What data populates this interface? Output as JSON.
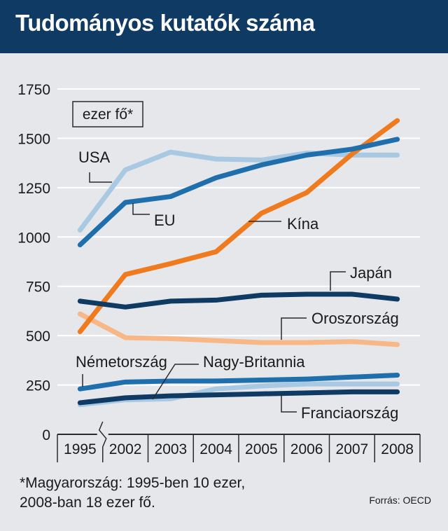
{
  "header": {
    "title": "Tudományos kutatók száma"
  },
  "footnote": {
    "line1": "*Magyarország: 1995-ben 10 ezer,",
    "line2": "2008-ban 18 ezer fő."
  },
  "source": "Forrás: OECD",
  "chart_data": {
    "type": "line",
    "unit_label": "ezer fő*",
    "categories": [
      "1995",
      "2002",
      "2003",
      "2004",
      "2005",
      "2006",
      "2007",
      "2008"
    ],
    "yticks": [
      "0",
      "250",
      "500",
      "750",
      "1000",
      "1250",
      "1500",
      "1750"
    ],
    "ylim": [
      0,
      1750
    ],
    "axis_break_between": [
      "1995",
      "2002"
    ],
    "grid": true,
    "series": [
      {
        "name": "USA",
        "color": "#a9c9e3",
        "values": [
          1035,
          1340,
          1430,
          1395,
          1390,
          1425,
          1415,
          1415
        ]
      },
      {
        "name": "EU",
        "color": "#1f6fad",
        "values": [
          960,
          1175,
          1205,
          1300,
          1365,
          1415,
          1445,
          1495
        ]
      },
      {
        "name": "Kína",
        "color": "#f07a1e",
        "values": [
          520,
          810,
          865,
          925,
          1120,
          1225,
          1420,
          1590
        ]
      },
      {
        "name": "Japán",
        "color": "#0e3a63",
        "values": [
          675,
          645,
          675,
          680,
          705,
          710,
          710,
          685
        ]
      },
      {
        "name": "Oroszország",
        "color": "#f7b787",
        "values": [
          610,
          490,
          485,
          475,
          465,
          465,
          470,
          455
        ]
      },
      {
        "name": "Németország",
        "color": "#1f6fad",
        "values": [
          230,
          265,
          270,
          270,
          275,
          280,
          290,
          300
        ]
      },
      {
        "name": "Nagy-Britannia",
        "color": "#a9c9e3",
        "values": [
          150,
          175,
          180,
          230,
          245,
          255,
          255,
          255
        ]
      },
      {
        "name": "Franciaország",
        "color": "#0e3a63",
        "values": [
          160,
          185,
          195,
          200,
          205,
          210,
          215,
          215
        ]
      }
    ]
  }
}
